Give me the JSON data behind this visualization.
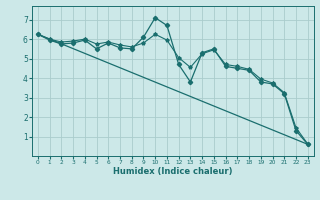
{
  "title": "",
  "xlabel": "Humidex (Indice chaleur)",
  "ylabel": "",
  "background_color": "#cce8e8",
  "grid_color": "#aacccc",
  "line_color": "#1a6e6e",
  "xlim": [
    -0.5,
    23.5
  ],
  "ylim": [
    0,
    7.7
  ],
  "yticks": [
    1,
    2,
    3,
    4,
    5,
    6,
    7
  ],
  "xticks": [
    0,
    1,
    2,
    3,
    4,
    5,
    6,
    7,
    8,
    9,
    10,
    11,
    12,
    13,
    14,
    15,
    16,
    17,
    18,
    19,
    20,
    21,
    22,
    23
  ],
  "series1": {
    "x": [
      0,
      1,
      2,
      3,
      4,
      5,
      6,
      7,
      8,
      9,
      10,
      11,
      12,
      13,
      14,
      15,
      16,
      17,
      18,
      19,
      20,
      21,
      22,
      23
    ],
    "y": [
      6.25,
      5.95,
      5.75,
      5.8,
      5.95,
      5.5,
      5.8,
      5.55,
      5.5,
      6.1,
      7.1,
      6.7,
      4.7,
      3.8,
      5.3,
      5.5,
      4.6,
      4.5,
      4.4,
      3.8,
      3.7,
      3.2,
      1.3,
      0.6
    ]
  },
  "series2": {
    "x": [
      0,
      23
    ],
    "y": [
      6.25,
      0.6
    ]
  },
  "series3": {
    "x": [
      0,
      1,
      2,
      3,
      4,
      5,
      6,
      7,
      8,
      9,
      10,
      11,
      12,
      13,
      14,
      15,
      16,
      17,
      18,
      19,
      20,
      21,
      22,
      23
    ],
    "y": [
      6.25,
      6.0,
      5.85,
      5.9,
      6.0,
      5.75,
      5.85,
      5.7,
      5.6,
      5.8,
      6.25,
      5.95,
      5.05,
      4.55,
      5.25,
      5.45,
      4.7,
      4.6,
      4.45,
      3.95,
      3.75,
      3.25,
      1.45,
      0.62
    ]
  }
}
